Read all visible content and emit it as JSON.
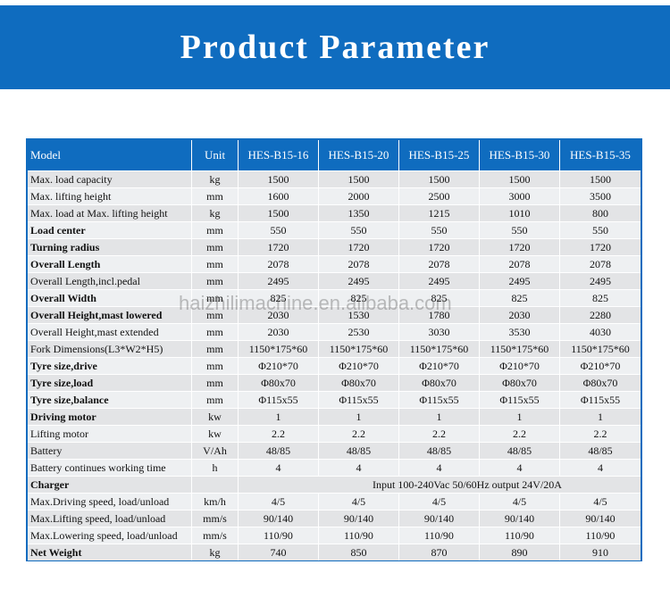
{
  "banner": {
    "title": "Product Parameter"
  },
  "table": {
    "headers": [
      "Model",
      "Unit",
      "HES-B15-16",
      "HES-B15-20",
      "HES-B15-25",
      "HES-B15-30",
      "HES-B15-35"
    ],
    "rows": [
      {
        "label": "Max. load capacity",
        "unit": "kg",
        "values": [
          "1500",
          "1500",
          "1500",
          "1500",
          "1500"
        ]
      },
      {
        "label": "Max. lifting height",
        "unit": "mm",
        "values": [
          "1600",
          "2000",
          "2500",
          "3000",
          "3500"
        ]
      },
      {
        "label": "Max. load at Max. lifting height",
        "unit": "kg",
        "values": [
          "1500",
          "1350",
          "1215",
          "1010",
          "800"
        ]
      },
      {
        "label": "Load center",
        "unit": "mm",
        "values": [
          "550",
          "550",
          "550",
          "550",
          "550"
        ]
      },
      {
        "label": "Turning radius",
        "unit": "mm",
        "values": [
          "1720",
          "1720",
          "1720",
          "1720",
          "1720"
        ]
      },
      {
        "label": "Overall Length",
        "unit": "mm",
        "values": [
          "2078",
          "2078",
          "2078",
          "2078",
          "2078"
        ]
      },
      {
        "label": "Overall Length,incl.pedal",
        "unit": "mm",
        "values": [
          "2495",
          "2495",
          "2495",
          "2495",
          "2495"
        ]
      },
      {
        "label": "Overall Width",
        "unit": "mm",
        "values": [
          "825",
          "825",
          "825",
          "825",
          "825"
        ]
      },
      {
        "label": "Overall Height,mast lowered",
        "unit": "mm",
        "values": [
          "2030",
          "1530",
          "1780",
          "2030",
          "2280"
        ]
      },
      {
        "label": "Overall Height,mast extended",
        "unit": "mm",
        "values": [
          "2030",
          "2530",
          "3030",
          "3530",
          "4030"
        ]
      },
      {
        "label": "Fork Dimensions(L3*W2*H5)",
        "unit": "mm",
        "values": [
          "1150*175*60",
          "1150*175*60",
          "1150*175*60",
          "1150*175*60",
          "1150*175*60"
        ]
      },
      {
        "label": "Tyre size,drive",
        "unit": "mm",
        "values": [
          "Φ210*70",
          "Φ210*70",
          "Φ210*70",
          "Φ210*70",
          "Φ210*70"
        ]
      },
      {
        "label": "Tyre size,load",
        "unit": "mm",
        "values": [
          "Φ80x70",
          "Φ80x70",
          "Φ80x70",
          "Φ80x70",
          "Φ80x70"
        ]
      },
      {
        "label": "Tyre size,balance",
        "unit": "mm",
        "values": [
          "Φ115x55",
          "Φ115x55",
          "Φ115x55",
          "Φ115x55",
          "Φ115x55"
        ]
      },
      {
        "label": "Driving motor",
        "unit": "kw",
        "values": [
          "1",
          "1",
          "1",
          "1",
          "1"
        ]
      },
      {
        "label": "Lifting motor",
        "unit": "kw",
        "values": [
          "2.2",
          "2.2",
          "2.2",
          "2.2",
          "2.2"
        ]
      },
      {
        "label": "Battery",
        "unit": "V/Ah",
        "values": [
          "48/85",
          "48/85",
          "48/85",
          "48/85",
          "48/85"
        ]
      },
      {
        "label": "Battery continues working time",
        "unit": "h",
        "values": [
          "4",
          "4",
          "4",
          "4",
          "4"
        ]
      },
      {
        "label": "Charger",
        "unit": "",
        "span_value": "Input 100-240Vac 50/60Hz  output 24V/20A"
      },
      {
        "label": "Max.Driving speed, load/unload",
        "unit": "km/h",
        "values": [
          "4/5",
          "4/5",
          "4/5",
          "4/5",
          "4/5"
        ]
      },
      {
        "label": "Max.Lifting speed, load/unload",
        "unit": "mm/s",
        "values": [
          "90/140",
          "90/140",
          "90/140",
          "90/140",
          "90/140"
        ]
      },
      {
        "label": "Max.Lowering speed, load/unload",
        "unit": "mm/s",
        "values": [
          "110/90",
          "110/90",
          "110/90",
          "110/90",
          "110/90"
        ]
      },
      {
        "label": "Net Weight",
        "unit": "kg",
        "values": [
          "740",
          "850",
          "870",
          "890",
          "910"
        ]
      }
    ]
  },
  "watermark": "haizhilimachine.en.alibaba.com"
}
